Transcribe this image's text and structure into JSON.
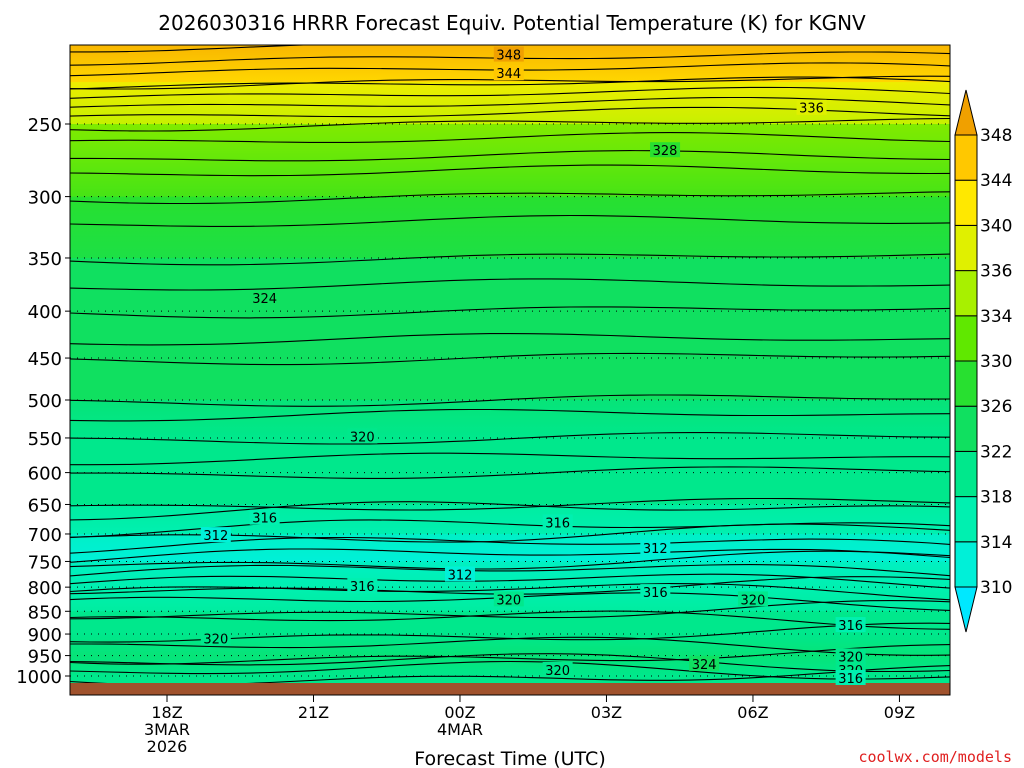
{
  "chart_data": {
    "type": "heatmap",
    "title": "2026030316 HRRR Forecast Equiv. Potential Temperature (K) for KGNV",
    "xlabel": "Forecast Time (UTC)",
    "ylabel": "",
    "y_scale": "log",
    "y_direction": "descending",
    "ylim": [
      1020,
      200
    ],
    "xlim_hours": [
      -2.6,
      15.3
    ],
    "y_ticks": [
      250,
      300,
      350,
      400,
      450,
      500,
      550,
      600,
      650,
      700,
      750,
      800,
      850,
      900,
      950,
      1000
    ],
    "x_ticks": [
      {
        "hour": 0,
        "label": "18Z",
        "line2": "3MAR",
        "line3": "2026"
      },
      {
        "hour": 3,
        "label": "21Z",
        "line2": "",
        "line3": ""
      },
      {
        "hour": 6,
        "label": "00Z",
        "line2": "4MAR",
        "line3": ""
      },
      {
        "hour": 9,
        "label": "03Z",
        "line2": "",
        "line3": ""
      },
      {
        "hour": 12,
        "label": "06Z",
        "line2": "",
        "line3": ""
      },
      {
        "hour": 15,
        "label": "09Z",
        "line2": "",
        "line3": ""
      }
    ],
    "grid": "dotted-horizontal",
    "legend": "right colorbar",
    "colorbar": {
      "levels": [
        310,
        314,
        318,
        322,
        326,
        330,
        334,
        336,
        340,
        344,
        348
      ],
      "labels": [
        "310",
        "314",
        "318",
        "322",
        "326",
        "330",
        "334",
        "336",
        "340",
        "344",
        "348"
      ],
      "colors": [
        "#00e8ff",
        "#00f0d8",
        "#00f0b0",
        "#00e88c",
        "#10e060",
        "#28e030",
        "#60e800",
        "#a8f000",
        "#e0f000",
        "#ffe800",
        "#ffc800",
        "#f0a000"
      ]
    },
    "profile": [
      {
        "p": 1000,
        "theta_e": 320
      },
      {
        "p": 950,
        "theta_e": 322
      },
      {
        "p": 900,
        "theta_e": 321
      },
      {
        "p": 850,
        "theta_e": 318
      },
      {
        "p": 800,
        "theta_e": 316
      },
      {
        "p": 750,
        "theta_e": 312
      },
      {
        "p": 700,
        "theta_e": 314
      },
      {
        "p": 650,
        "theta_e": 318
      },
      {
        "p": 600,
        "theta_e": 320
      },
      {
        "p": 550,
        "theta_e": 321
      },
      {
        "p": 500,
        "theta_e": 322
      },
      {
        "p": 450,
        "theta_e": 323
      },
      {
        "p": 400,
        "theta_e": 324
      },
      {
        "p": 350,
        "theta_e": 325
      },
      {
        "p": 300,
        "theta_e": 327
      },
      {
        "p": 250,
        "theta_e": 334
      },
      {
        "p": 225,
        "theta_e": 340
      },
      {
        "p": 205,
        "theta_e": 348
      }
    ],
    "contour_labels": [
      {
        "value": "348",
        "hour": 7.0,
        "p": 210
      },
      {
        "value": "344",
        "hour": 7.0,
        "p": 220
      },
      {
        "value": "336",
        "hour": 13.2,
        "p": 240
      },
      {
        "value": "328",
        "hour": 10.2,
        "p": 267
      },
      {
        "value": "324",
        "hour": 2.0,
        "p": 387
      },
      {
        "value": "320",
        "hour": 4.0,
        "p": 548
      },
      {
        "value": "316",
        "hour": 2.0,
        "p": 672
      },
      {
        "value": "316",
        "hour": 8.0,
        "p": 680
      },
      {
        "value": "312",
        "hour": 1.0,
        "p": 702
      },
      {
        "value": "312",
        "hour": 10.0,
        "p": 725
      },
      {
        "value": "312",
        "hour": 6.0,
        "p": 775
      },
      {
        "value": "316",
        "hour": 4.0,
        "p": 798
      },
      {
        "value": "316",
        "hour": 10.0,
        "p": 810
      },
      {
        "value": "320",
        "hour": 7.0,
        "p": 825
      },
      {
        "value": "320",
        "hour": 12.0,
        "p": 825
      },
      {
        "value": "316",
        "hour": 14.0,
        "p": 880
      },
      {
        "value": "320",
        "hour": 1.0,
        "p": 910
      },
      {
        "value": "320",
        "hour": 14.0,
        "p": 952
      },
      {
        "value": "324",
        "hour": 11.0,
        "p": 970
      },
      {
        "value": "320",
        "hour": 8.0,
        "p": 985
      },
      {
        "value": "320",
        "hour": 14.0,
        "p": 985
      },
      {
        "value": "316",
        "hour": 14.0,
        "p": 1005
      }
    ],
    "ground_color": "#a0522d"
  },
  "watermark": "coolwx.com/models"
}
